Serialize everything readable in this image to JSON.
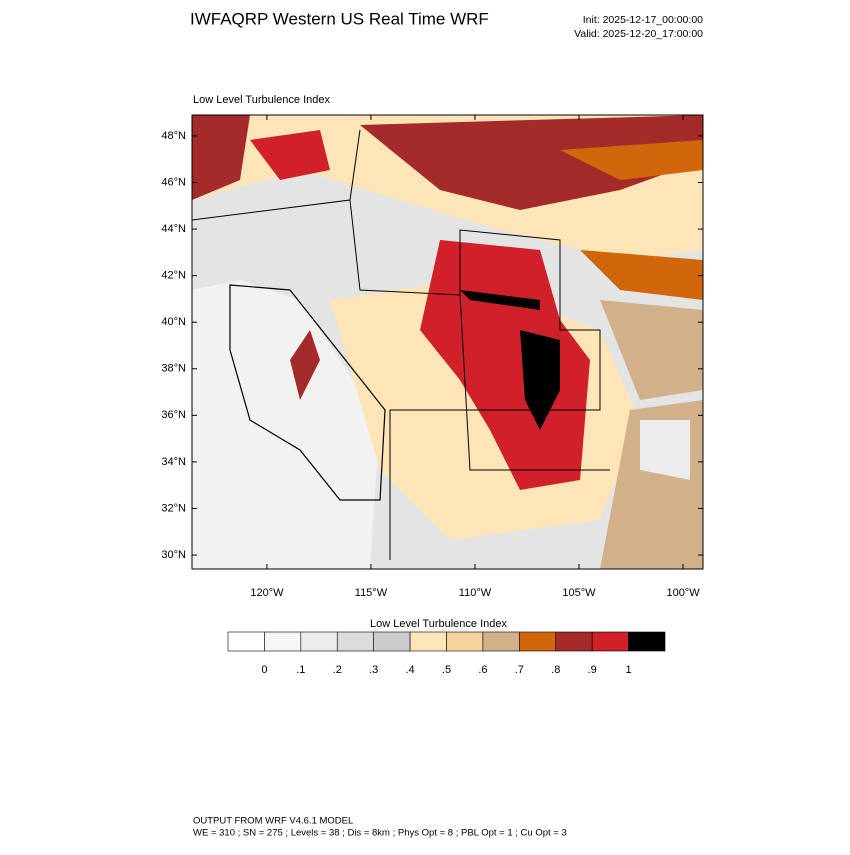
{
  "chart_data": {
    "type": "map",
    "title": "IWFAQRP Western US Real Time WRF",
    "init": "Init: 2025-12-17_00:00:00",
    "valid": "Valid: 2025-12-20_17:00:00",
    "subtitle": "Low Level Turbulence Index",
    "xlim": [
      -123.6,
      -99.04
    ],
    "ylim": [
      29.4,
      48.9
    ],
    "xticks": [
      {
        "value": -120,
        "label": "120°W"
      },
      {
        "value": -115,
        "label": "115°W"
      },
      {
        "value": -110,
        "label": "110°W"
      },
      {
        "value": -105,
        "label": "105°W"
      },
      {
        "value": -100,
        "label": "100°W"
      }
    ],
    "yticks": [
      {
        "value": 30,
        "label": "30°N"
      },
      {
        "value": 32,
        "label": "32°N"
      },
      {
        "value": 34,
        "label": "34°N"
      },
      {
        "value": 36,
        "label": "36°N"
      },
      {
        "value": 38,
        "label": "38°N"
      },
      {
        "value": 40,
        "label": "40°N"
      },
      {
        "value": 42,
        "label": "42°N"
      },
      {
        "value": 44,
        "label": "44°N"
      },
      {
        "value": 46,
        "label": "46°N"
      },
      {
        "value": 48,
        "label": "48°N"
      }
    ],
    "colorbar": {
      "title": "Low Level Turbulence Index",
      "levels": [
        0,
        {
          "value": 0.1,
          "label": ".1"
        },
        {
          "value": 0.2,
          "label": ".2"
        },
        {
          "value": 0.3,
          "label": ".3"
        },
        {
          "value": 0.4,
          "label": ".4"
        },
        {
          "value": 0.5,
          "label": ".5"
        },
        {
          "value": 0.6,
          "label": ".6"
        },
        {
          "value": 0.7,
          "label": ".7"
        },
        {
          "value": 0.8,
          "label": ".8"
        },
        {
          "value": 0.9,
          "label": ".9"
        },
        1
      ],
      "colors": [
        "#ffffff",
        "#f6f6f6",
        "#ececec",
        "#dcdcdc",
        "#cdcdcd",
        "#fde5b8",
        "#f5d29e",
        "#d2b08a",
        "#d2660a",
        "#a52a2a",
        "#d0202a",
        "#000000"
      ]
    },
    "footer": [
      "OUTPUT FROM WRF V4.6.1 MODEL",
      "WE = 310 ; SN = 275 ; Levels = 38 ; Dis = 8km ; Phys Opt = 8 ; PBL Opt = 1 ; Cu Opt = 3"
    ]
  }
}
